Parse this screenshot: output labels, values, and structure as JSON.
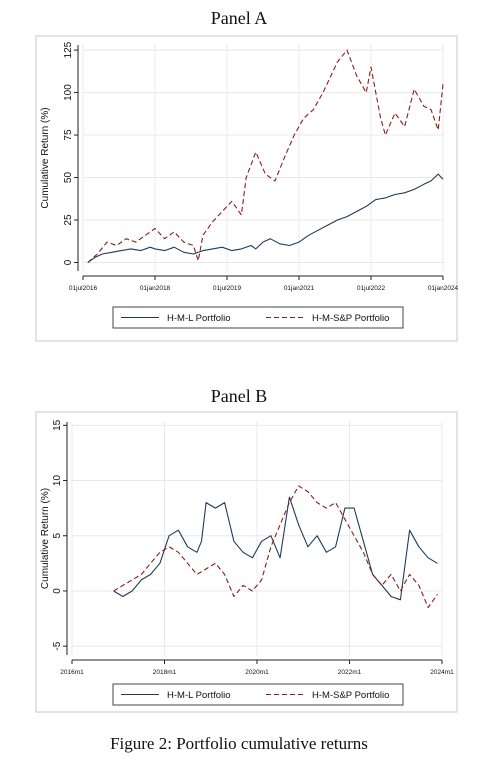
{
  "caption": "Figure 2: Portfolio cumulative returns",
  "colors": {
    "hml": "#1f3b57",
    "hmsp": "#8c1c1c",
    "grid": "#e8e8e8",
    "frame": "#c8c8c8"
  },
  "chart_data": [
    {
      "type": "line",
      "title": "Panel A",
      "ylabel": "Cumulative Return (%)",
      "xlabel": "",
      "x_ticks": [
        "01jul2016",
        "01jan2018",
        "01jul2019",
        "01jan2021",
        "01jul2022",
        "01jan2024"
      ],
      "x_tick_values": [
        2016.5,
        2018.0,
        2019.5,
        2021.0,
        2022.5,
        2024.0
      ],
      "xlim": [
        2016.5,
        2024.0
      ],
      "y_ticks": [
        0,
        25,
        50,
        75,
        100,
        125
      ],
      "ylim": [
        -5,
        128
      ],
      "grid": true,
      "legend": "bottom",
      "series": [
        {
          "name": "H-M-L Portfolio",
          "style": "solid",
          "x": [
            2016.6,
            2016.75,
            2016.9,
            2017.1,
            2017.3,
            2017.5,
            2017.7,
            2017.9,
            2018.0,
            2018.2,
            2018.4,
            2018.6,
            2018.8,
            2019.0,
            2019.2,
            2019.4,
            2019.6,
            2019.8,
            2020.0,
            2020.1,
            2020.25,
            2020.4,
            2020.6,
            2020.8,
            2021.0,
            2021.2,
            2021.4,
            2021.6,
            2021.8,
            2022.0,
            2022.2,
            2022.4,
            2022.6,
            2022.8,
            2023.0,
            2023.2,
            2023.4,
            2023.6,
            2023.75,
            2023.9,
            2024.0
          ],
          "y": [
            0,
            3,
            5,
            6,
            7,
            8,
            7,
            9,
            8,
            7,
            9,
            6,
            5,
            7,
            8,
            9,
            7,
            8,
            10,
            8,
            12,
            14,
            11,
            10,
            12,
            16,
            19,
            22,
            25,
            27,
            30,
            33,
            37,
            38,
            40,
            41,
            43,
            46,
            48,
            52,
            49
          ]
        },
        {
          "name": "H-M-S&P Portfolio",
          "style": "dashed",
          "x": [
            2016.6,
            2016.8,
            2017.0,
            2017.2,
            2017.4,
            2017.6,
            2017.8,
            2018.0,
            2018.2,
            2018.4,
            2018.6,
            2018.8,
            2018.9,
            2019.0,
            2019.2,
            2019.4,
            2019.6,
            2019.8,
            2019.9,
            2020.1,
            2020.3,
            2020.5,
            2020.7,
            2020.9,
            2021.1,
            2021.3,
            2021.5,
            2021.7,
            2021.8,
            2022.0,
            2022.2,
            2022.4,
            2022.5,
            2022.7,
            2022.8,
            2023.0,
            2023.2,
            2023.4,
            2023.6,
            2023.75,
            2023.9,
            2024.0
          ],
          "y": [
            0,
            5,
            12,
            10,
            14,
            12,
            16,
            20,
            14,
            18,
            12,
            10,
            1,
            16,
            24,
            30,
            36,
            28,
            50,
            65,
            52,
            48,
            62,
            75,
            85,
            90,
            100,
            112,
            118,
            125,
            110,
            100,
            115,
            85,
            75,
            88,
            80,
            102,
            92,
            90,
            78,
            105
          ]
        }
      ]
    },
    {
      "type": "line",
      "title": "Panel B",
      "ylabel": "Cumulative Return (%)",
      "xlabel": "",
      "x_ticks": [
        "2016m1",
        "2018m1",
        "2020m1",
        "2022m1",
        "2024m1"
      ],
      "x_tick_values": [
        2016,
        2018,
        2020,
        2022,
        2024
      ],
      "xlim": [
        2016,
        2024
      ],
      "y_ticks": [
        -5,
        0,
        5,
        10,
        15
      ],
      "ylim": [
        -5.8,
        15.3
      ],
      "grid": true,
      "legend": "bottom",
      "series": [
        {
          "name": "H-M-L Portfolio",
          "style": "solid",
          "x": [
            2016.9,
            2017.1,
            2017.3,
            2017.5,
            2017.7,
            2017.9,
            2018.1,
            2018.3,
            2018.5,
            2018.7,
            2018.8,
            2018.9,
            2019.1,
            2019.3,
            2019.5,
            2019.7,
            2019.9,
            2020.1,
            2020.3,
            2020.5,
            2020.7,
            2020.9,
            2021.1,
            2021.3,
            2021.5,
            2021.7,
            2021.9,
            2022.1,
            2022.3,
            2022.5,
            2022.7,
            2022.9,
            2023.1,
            2023.3,
            2023.5,
            2023.7,
            2023.9
          ],
          "y": [
            0,
            -0.5,
            0,
            1,
            1.5,
            2.5,
            5,
            5.5,
            4,
            3.5,
            4.5,
            8,
            7.5,
            8,
            4.5,
            3.5,
            3,
            4.5,
            5,
            3,
            8.5,
            6,
            4,
            5,
            3.5,
            4,
            7.5,
            7.5,
            4.5,
            1.5,
            0.5,
            -0.5,
            -0.8,
            5.5,
            4,
            3,
            2.5
          ]
        },
        {
          "name": "H-M-S&P Portfolio",
          "style": "dashed",
          "x": [
            2016.9,
            2017.1,
            2017.3,
            2017.5,
            2017.7,
            2017.9,
            2018.1,
            2018.3,
            2018.5,
            2018.7,
            2018.9,
            2019.1,
            2019.3,
            2019.5,
            2019.7,
            2019.9,
            2020.1,
            2020.3,
            2020.5,
            2020.7,
            2020.9,
            2021.1,
            2021.3,
            2021.5,
            2021.7,
            2021.9,
            2022.1,
            2022.3,
            2022.5,
            2022.7,
            2022.9,
            2023.1,
            2023.3,
            2023.5,
            2023.7,
            2023.9
          ],
          "y": [
            0,
            0.5,
            1,
            1.5,
            2.5,
            3.5,
            4,
            3.5,
            2.5,
            1.5,
            2,
            2.5,
            1.5,
            -0.5,
            0.5,
            0,
            1,
            4,
            6,
            8,
            9.5,
            9,
            8,
            7.5,
            8,
            6.5,
            5,
            3.5,
            1.5,
            0.5,
            1.5,
            0,
            1.5,
            0.5,
            -1.5,
            -0.3
          ]
        }
      ]
    }
  ]
}
